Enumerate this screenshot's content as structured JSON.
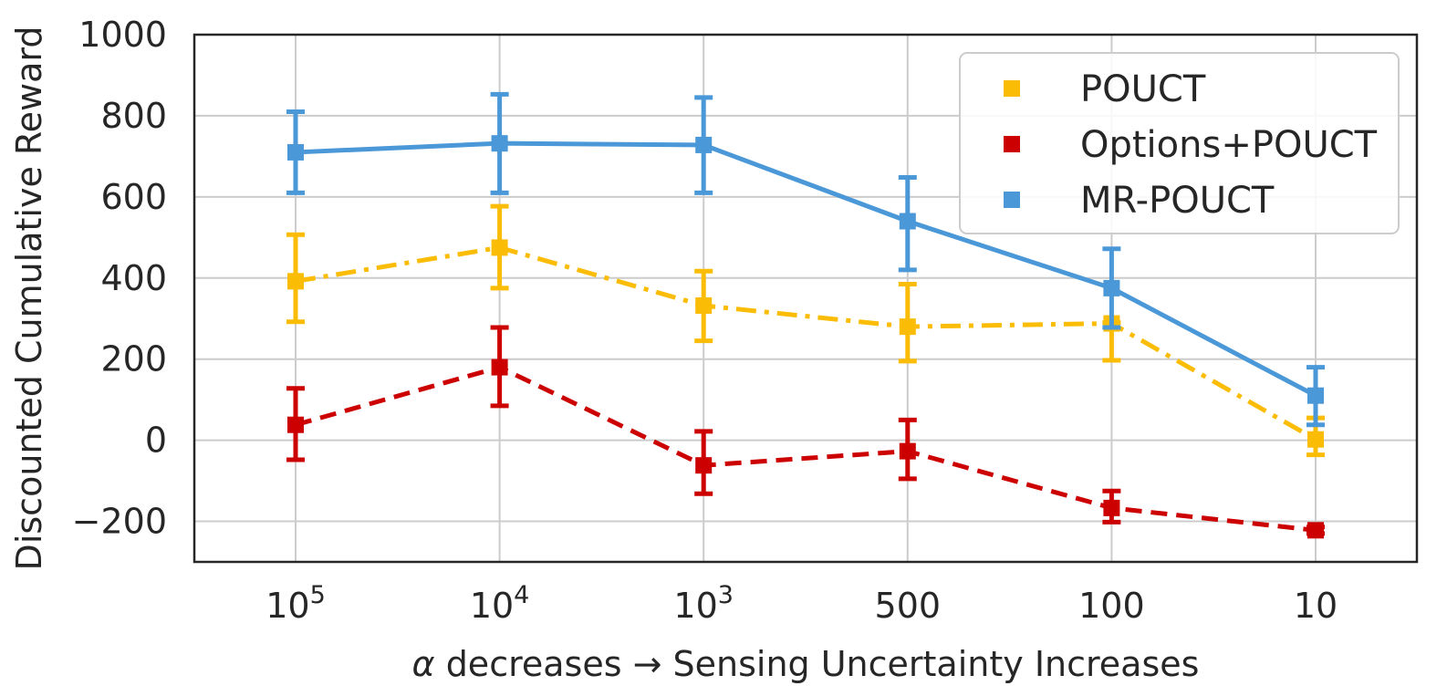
{
  "chart_data": {
    "type": "line",
    "title": "",
    "xlabel_parts": {
      "alpha": "α",
      "rest": " decreases → Sensing Uncertainty Increases"
    },
    "ylabel": "Discounted Cumulative Reward",
    "ylim": [
      -300,
      1000
    ],
    "yticks": [
      -200,
      0,
      200,
      400,
      600,
      800,
      1000
    ],
    "ytick_labels": [
      "−200",
      "0",
      "200",
      "400",
      "600",
      "800",
      "1000"
    ],
    "categories": [
      {
        "base": "10",
        "exp": "5"
      },
      {
        "base": "10",
        "exp": "4"
      },
      {
        "base": "10",
        "exp": "3"
      },
      {
        "base": "500",
        "exp": ""
      },
      {
        "base": "100",
        "exp": ""
      },
      {
        "base": "10",
        "exp": ""
      }
    ],
    "grid": true,
    "legend_position": "top-right",
    "series": [
      {
        "name": "POUCT",
        "color": "#fbbc05",
        "line_style": "dashdot",
        "values": [
          392,
          475,
          332,
          280,
          288,
          2
        ],
        "err_low": [
          292,
          375,
          245,
          195,
          197,
          -36
        ],
        "err_high": [
          507,
          577,
          417,
          385,
          290,
          55
        ]
      },
      {
        "name": "Options+POUCT",
        "color": "#cc0000",
        "line_style": "dashed",
        "values": [
          38,
          180,
          -62,
          -27,
          -167,
          -222
        ],
        "err_low": [
          -48,
          85,
          -132,
          -95,
          -202,
          -230
        ],
        "err_high": [
          128,
          278,
          22,
          50,
          -125,
          -214
        ]
      },
      {
        "name": "MR-POUCT",
        "color": "#4a98d8",
        "line_style": "solid",
        "values": [
          710,
          732,
          728,
          540,
          375,
          110
        ],
        "err_low": [
          610,
          610,
          610,
          420,
          278,
          38
        ],
        "err_high": [
          810,
          853,
          845,
          648,
          472,
          180
        ]
      }
    ]
  }
}
